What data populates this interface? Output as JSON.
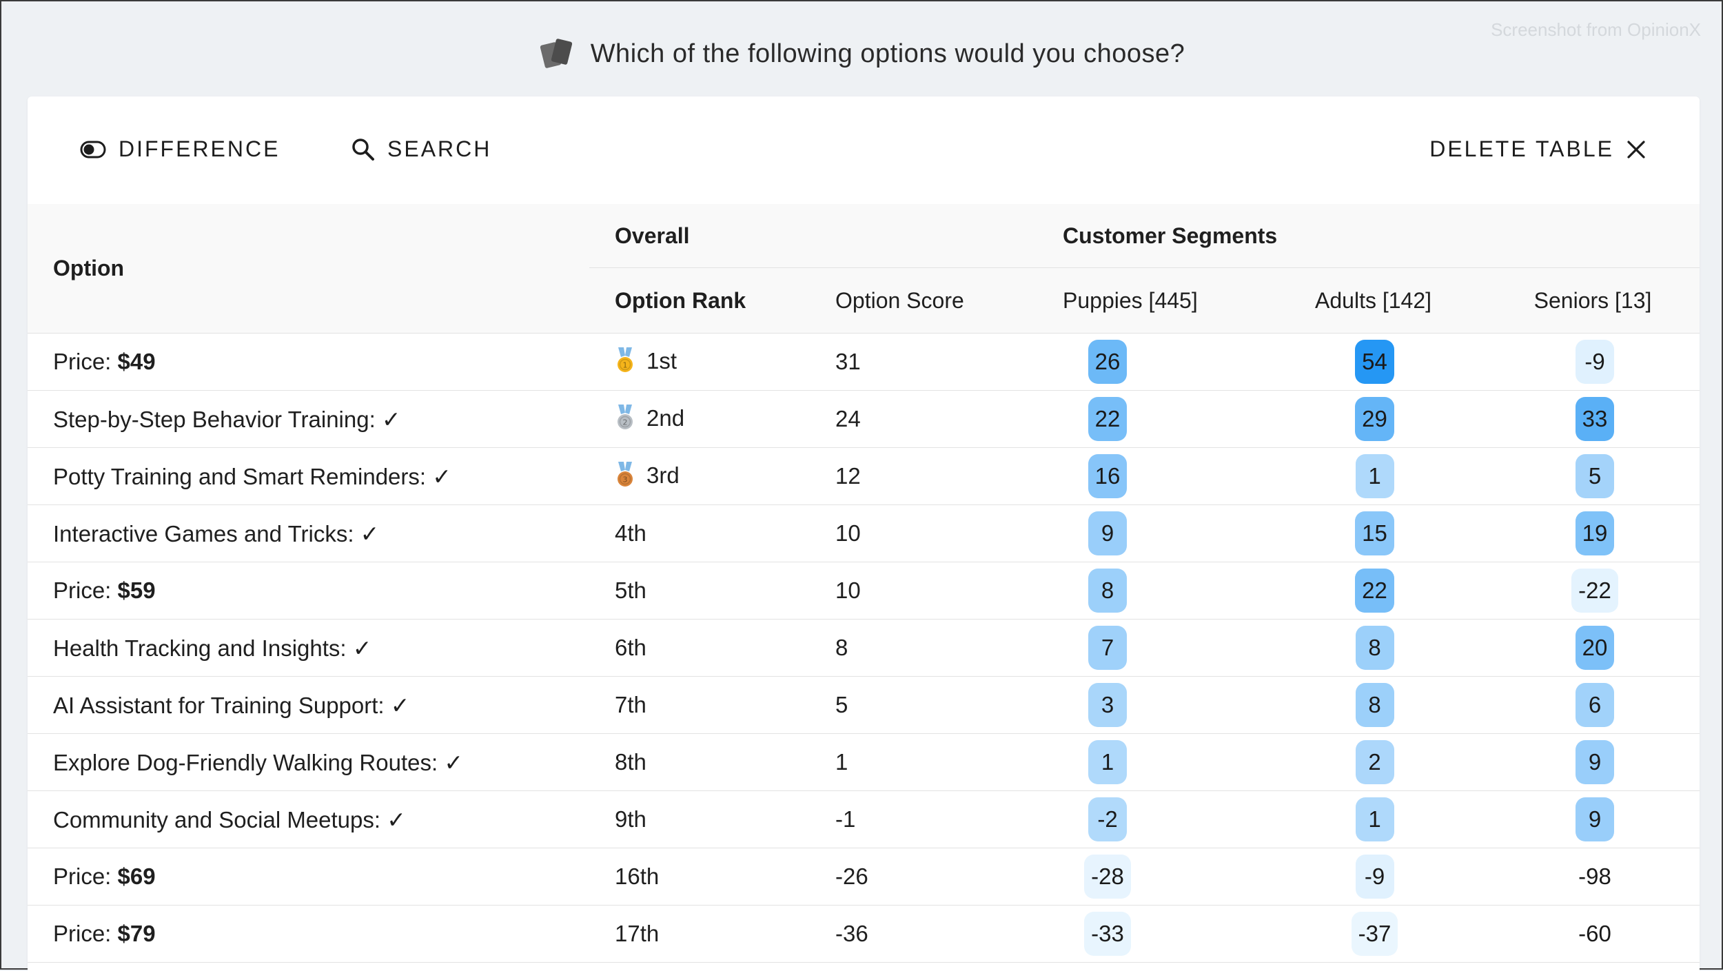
{
  "watermark": "Screenshot from OpinionX",
  "question": "Which of the following options would you choose?",
  "toolbar": {
    "difference_label": "DIFFERENCE",
    "search_label": "SEARCH",
    "delete_label": "DELETE TABLE"
  },
  "table": {
    "option_header": "Option",
    "overall_header": "Overall",
    "segments_header": "Customer Segments",
    "rank_header": "Option Rank",
    "score_header": "Option Score",
    "segment_headers": [
      "Puppies [445]",
      "Adults [142]",
      "Seniors [13]"
    ],
    "rows": [
      {
        "prefix": "Price: ",
        "bold": "$49",
        "rank": "1st",
        "medal": "gold",
        "score": "31",
        "segments": [
          "26",
          "54",
          "-9"
        ]
      },
      {
        "prefix": "Step-by-Step Behavior Training: ✓",
        "bold": "",
        "rank": "2nd",
        "medal": "silver",
        "score": "24",
        "segments": [
          "22",
          "29",
          "33"
        ]
      },
      {
        "prefix": "Potty Training and Smart Reminders: ✓",
        "bold": "",
        "rank": "3rd",
        "medal": "bronze",
        "score": "12",
        "segments": [
          "16",
          "1",
          "5"
        ]
      },
      {
        "prefix": "Interactive Games and Tricks: ✓",
        "bold": "",
        "rank": "4th",
        "medal": "",
        "score": "10",
        "segments": [
          "9",
          "15",
          "19"
        ]
      },
      {
        "prefix": "Price: ",
        "bold": "$59",
        "rank": "5th",
        "medal": "",
        "score": "10",
        "segments": [
          "8",
          "22",
          "-22"
        ]
      },
      {
        "prefix": "Health Tracking and Insights: ✓",
        "bold": "",
        "rank": "6th",
        "medal": "",
        "score": "8",
        "segments": [
          "7",
          "8",
          "20"
        ]
      },
      {
        "prefix": "AI Assistant for Training Support: ✓",
        "bold": "",
        "rank": "7th",
        "medal": "",
        "score": "5",
        "segments": [
          "3",
          "8",
          "6"
        ]
      },
      {
        "prefix": "Explore Dog-Friendly Walking Routes: ✓",
        "bold": "",
        "rank": "8th",
        "medal": "",
        "score": "1",
        "segments": [
          "1",
          "2",
          "9"
        ]
      },
      {
        "prefix": "Community and Social Meetups: ✓",
        "bold": "",
        "rank": "9th",
        "medal": "",
        "score": "-1",
        "segments": [
          "-2",
          "1",
          "9"
        ]
      },
      {
        "prefix": "Price: ",
        "bold": "$69",
        "rank": "16th",
        "medal": "",
        "score": "-26",
        "segments": [
          "-28",
          "-9",
          "-98"
        ]
      },
      {
        "prefix": "Price: ",
        "bold": "$79",
        "rank": "17th",
        "medal": "",
        "score": "-36",
        "segments": [
          "-33",
          "-37",
          "-60"
        ]
      }
    ]
  },
  "colors": {
    "accent_strong": "#2196f3",
    "medal_gold": "#f5b41a",
    "medal_silver": "#b8bec4",
    "medal_bronze": "#d9843a",
    "ribbon": "#7fb8e6"
  }
}
